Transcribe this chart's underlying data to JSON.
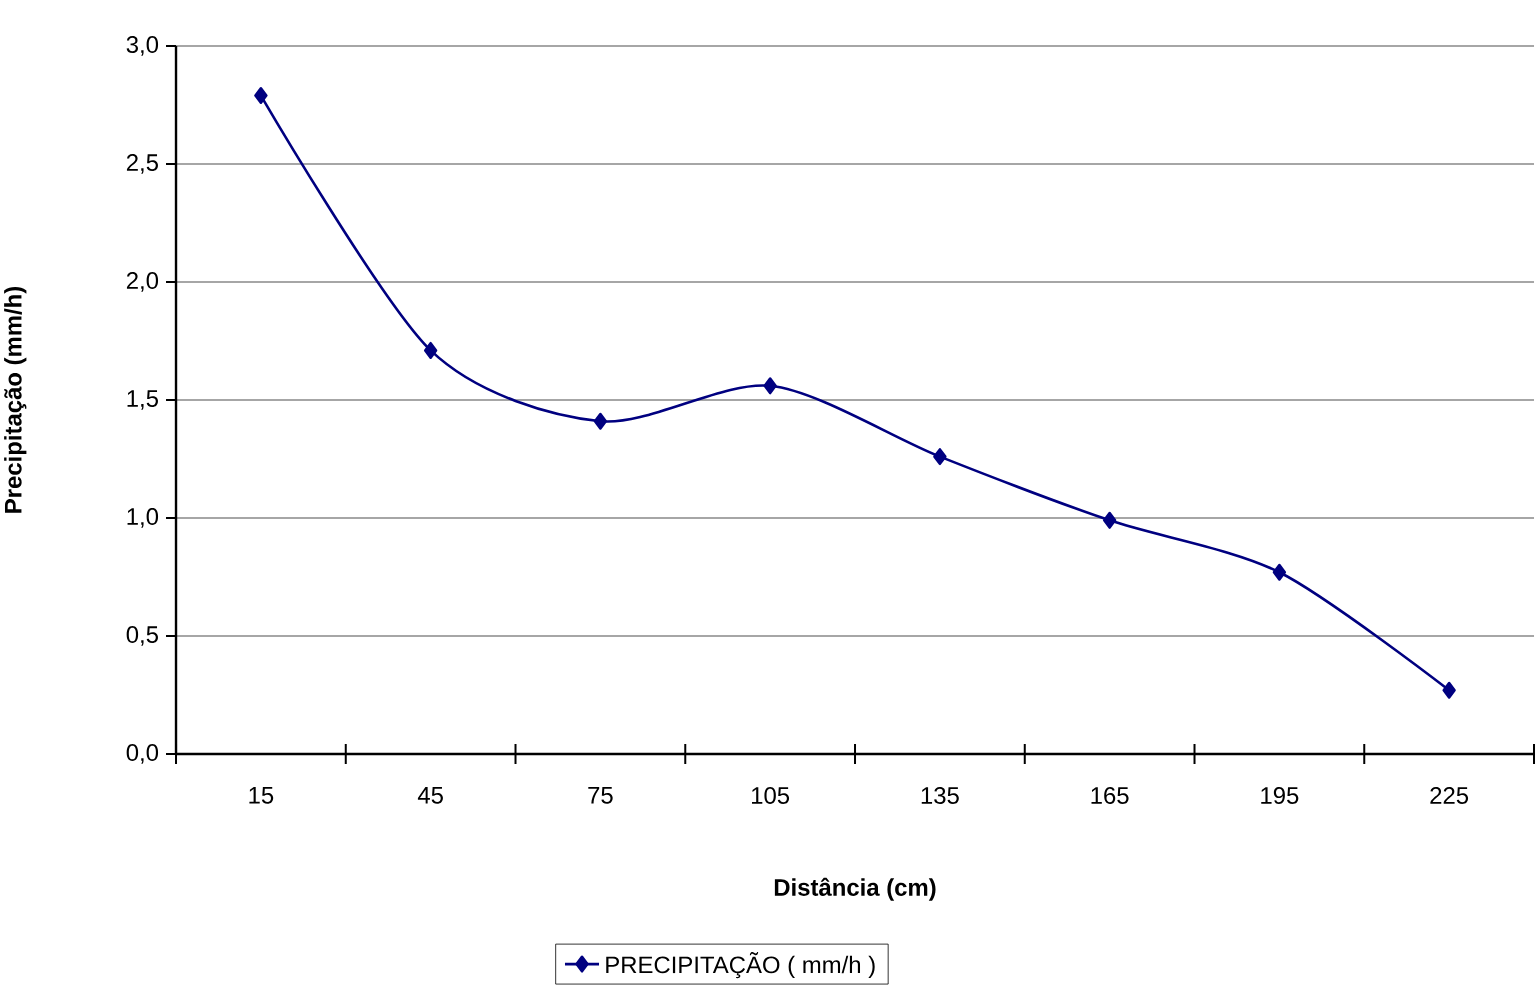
{
  "chart_data": {
    "type": "line",
    "xlabel": "Distância (cm)",
    "ylabel": "Precipitação (mm/h)",
    "categories": [
      "15",
      "45",
      "75",
      "105",
      "135",
      "165",
      "195",
      "225"
    ],
    "series": [
      {
        "name": "PRECIPITAÇÃO ( mm/h )",
        "color": "#000080",
        "values": [
          2.79,
          1.71,
          1.41,
          1.56,
          1.26,
          0.99,
          0.77,
          0.27
        ]
      }
    ],
    "ylim": [
      0,
      3
    ],
    "yticks": [
      {
        "value": 0,
        "label": "0,0"
      },
      {
        "value": 0.5,
        "label": "0,5"
      },
      {
        "value": 1,
        "label": "1,0"
      },
      {
        "value": 1.5,
        "label": "1,5"
      },
      {
        "value": 2,
        "label": "2,0"
      },
      {
        "value": 2.5,
        "label": "2,5"
      },
      {
        "value": 3,
        "label": "3,0"
      }
    ],
    "grid": "y",
    "legend": "bottom",
    "marker": "diamond",
    "line_style": "solid"
  }
}
